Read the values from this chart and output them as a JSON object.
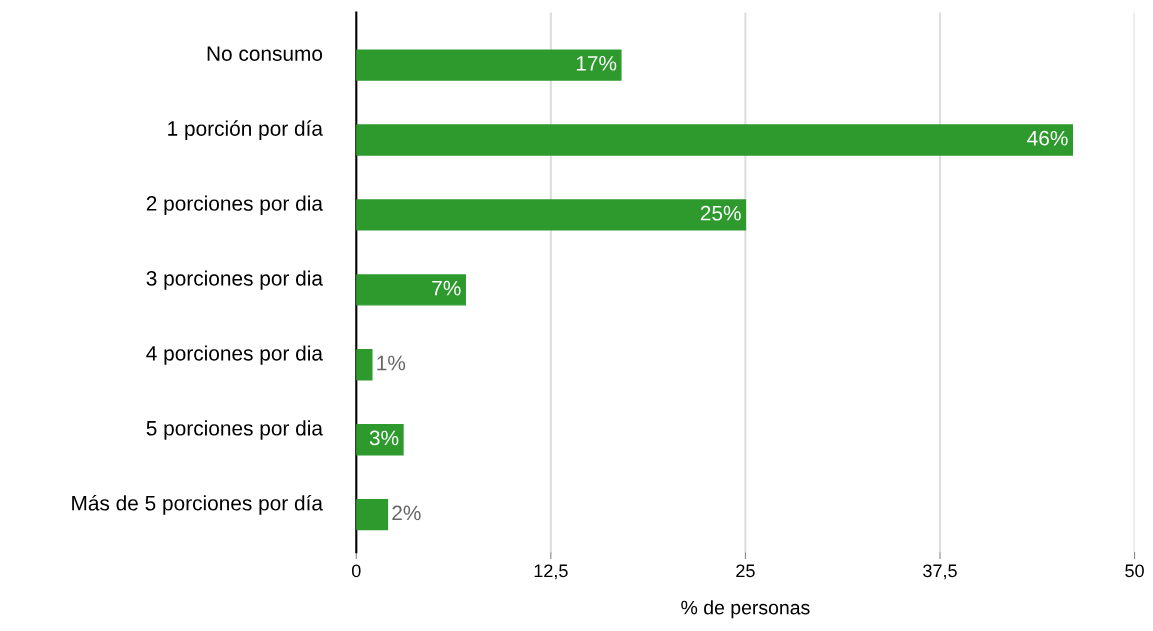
{
  "chart_data": {
    "type": "bar",
    "orientation": "horizontal",
    "xlabel": "% de personas",
    "categories": [
      "No consumo",
      "1 porción por día",
      "2 porciones por dia",
      "3 porciones por dia",
      "4 porciones por dia",
      "5 porciones por dia",
      "Más de 5 porciones por día"
    ],
    "values": [
      17,
      46,
      25,
      7,
      1,
      3,
      2
    ],
    "value_labels": [
      "17%",
      "46%",
      "25%",
      "7%",
      "1%",
      "3%",
      "2%"
    ],
    "color": "#2e9a2e",
    "xlim": [
      0,
      50
    ],
    "xticks": [
      0,
      {
        "value": 12.5,
        "label": "12,5"
      },
      25,
      {
        "value": 37.5,
        "label": "37,5"
      },
      50
    ],
    "grid": "x"
  }
}
